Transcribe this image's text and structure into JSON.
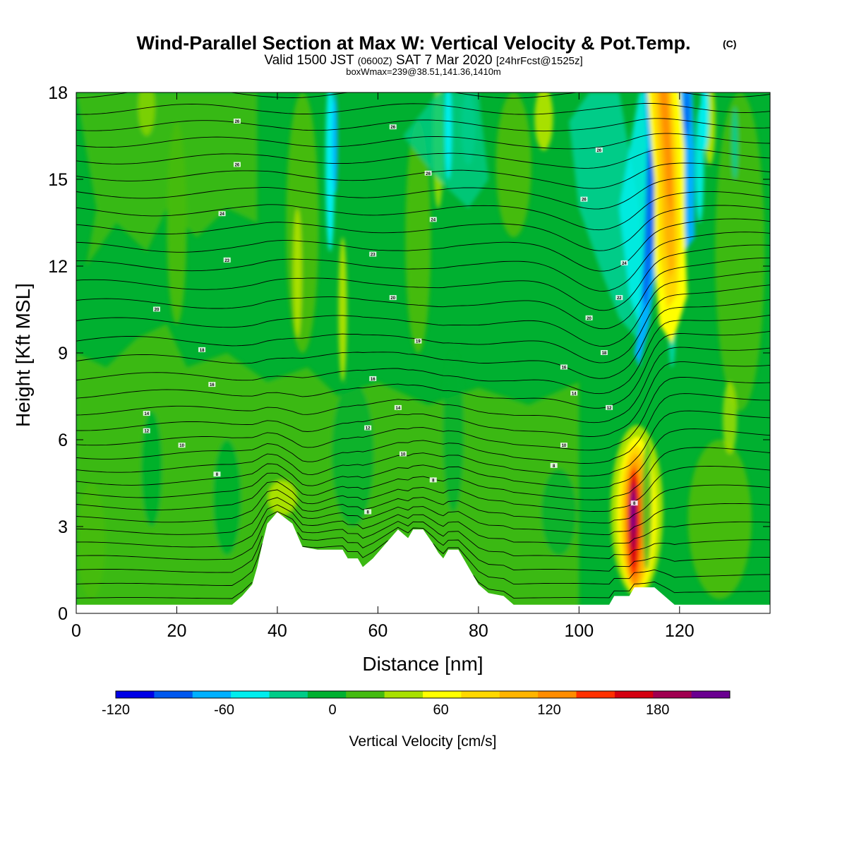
{
  "title": {
    "main": "Wind-Parallel Section at Max W: Vertical Velocity & Pot.Temp.",
    "copyright": "(C)",
    "valid_a": "Valid 1500 JST",
    "valid_utc": "(0600Z)",
    "valid_b": "SAT 7 Mar 2020",
    "forecast": "[24hrFcst@1525z]",
    "boxinfo": "boxWmax=239@38.51,141.36,1410m"
  },
  "chart_data": {
    "type": "heatmap",
    "xlabel": "Distance [nm]",
    "ylabel": "Height [Kft MSL]",
    "xlim": [
      0,
      138
    ],
    "ylim": [
      0,
      18
    ],
    "x_ticks": [
      "0",
      "20",
      "40",
      "60",
      "80",
      "100",
      "120"
    ],
    "y_ticks": [
      "0",
      "3",
      "6",
      "9",
      "12",
      "15",
      "18"
    ],
    "colorbar": {
      "label": "Vertical Velocity [cm/s]",
      "tick_labels": [
        "-120",
        "-60",
        "0",
        "60",
        "120",
        "180"
      ],
      "tick_values": [
        -120,
        -60,
        0,
        60,
        120,
        180
      ],
      "range": [
        -120,
        220
      ],
      "colors": [
        "#0000e6",
        "#0058ee",
        "#00b0ff",
        "#00eeee",
        "#00cc88",
        "#00b030",
        "#44bb10",
        "#a8e000",
        "#ffff00",
        "#ffd800",
        "#ffb400",
        "#ff8c00",
        "#ff3000",
        "#d40010",
        "#a00050",
        "#6a0090"
      ]
    },
    "contour_labels": [
      {
        "x": 32,
        "z": 17.0,
        "text": "26"
      },
      {
        "x": 63,
        "z": 16.8,
        "text": "26"
      },
      {
        "x": 32,
        "z": 15.5,
        "text": "26"
      },
      {
        "x": 70,
        "z": 15.2,
        "text": "26"
      },
      {
        "x": 104,
        "z": 16.0,
        "text": "26"
      },
      {
        "x": 29,
        "z": 13.8,
        "text": "24"
      },
      {
        "x": 71,
        "z": 13.6,
        "text": "24"
      },
      {
        "x": 101,
        "z": 14.3,
        "text": "26"
      },
      {
        "x": 30,
        "z": 12.2,
        "text": "23"
      },
      {
        "x": 59,
        "z": 12.4,
        "text": "23"
      },
      {
        "x": 109,
        "z": 12.1,
        "text": "24"
      },
      {
        "x": 16,
        "z": 10.5,
        "text": "20"
      },
      {
        "x": 63,
        "z": 10.9,
        "text": "20"
      },
      {
        "x": 108,
        "z": 10.9,
        "text": "22"
      },
      {
        "x": 102,
        "z": 10.2,
        "text": "20"
      },
      {
        "x": 68,
        "z": 9.4,
        "text": "19"
      },
      {
        "x": 25,
        "z": 9.1,
        "text": "18"
      },
      {
        "x": 105,
        "z": 9.0,
        "text": "18"
      },
      {
        "x": 97,
        "z": 8.5,
        "text": "16"
      },
      {
        "x": 27,
        "z": 7.9,
        "text": "16"
      },
      {
        "x": 59,
        "z": 8.1,
        "text": "16"
      },
      {
        "x": 99,
        "z": 7.6,
        "text": "14"
      },
      {
        "x": 64,
        "z": 7.1,
        "text": "14"
      },
      {
        "x": 106,
        "z": 7.1,
        "text": "12"
      },
      {
        "x": 14,
        "z": 6.9,
        "text": "14"
      },
      {
        "x": 14,
        "z": 6.3,
        "text": "12"
      },
      {
        "x": 58,
        "z": 6.4,
        "text": "12"
      },
      {
        "x": 21,
        "z": 5.8,
        "text": "10"
      },
      {
        "x": 65,
        "z": 5.5,
        "text": "10"
      },
      {
        "x": 97,
        "z": 5.8,
        "text": "10"
      },
      {
        "x": 95,
        "z": 5.1,
        "text": "8"
      },
      {
        "x": 28,
        "z": 4.8,
        "text": "8"
      },
      {
        "x": 71,
        "z": 4.6,
        "text": "8"
      },
      {
        "x": 58,
        "z": 3.5,
        "text": "8"
      },
      {
        "x": 111,
        "z": 3.8,
        "text": "8"
      }
    ],
    "max_w_cm_s": 239
  }
}
